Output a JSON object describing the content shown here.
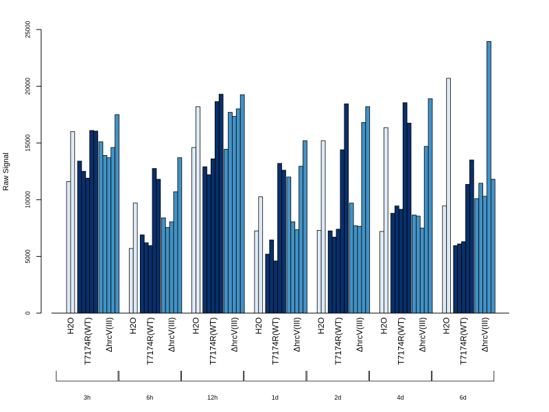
{
  "chart_data": {
    "type": "bar",
    "ylabel": "Raw Signal",
    "ylim": [
      0,
      25000
    ],
    "yticks": [
      0,
      5000,
      10000,
      15000,
      20000,
      25000
    ],
    "grid": false,
    "legend": "none",
    "conditions": [
      "H2O",
      "T7174R(WT)",
      "ΔhrcV(III)"
    ],
    "condition_colors": [
      "#deebf7",
      "#08306b",
      "#4292c6"
    ],
    "groups": [
      {
        "label": "3h",
        "bars": [
          {
            "condition": "H2O",
            "values": [
              11600,
              16000
            ]
          },
          {
            "condition": "T7174R(WT)",
            "values": [
              13400,
              12500,
              11900,
              16100,
              16050
            ]
          },
          {
            "condition": "ΔhrcV(III)",
            "values": [
              15100,
              13900,
              13700,
              14600,
              17500
            ]
          }
        ]
      },
      {
        "label": "6h",
        "bars": [
          {
            "condition": "H2O",
            "values": [
              5700,
              9700
            ]
          },
          {
            "condition": "T7174R(WT)",
            "values": [
              6900,
              6200,
              5950,
              12750,
              11800
            ]
          },
          {
            "condition": "ΔhrcV(III)",
            "values": [
              8400,
              7550,
              8050,
              10700,
              13700
            ]
          }
        ]
      },
      {
        "label": "12h",
        "bars": [
          {
            "condition": "H2O",
            "values": [
              14600,
              18200
            ]
          },
          {
            "condition": "T7174R(WT)",
            "values": [
              12900,
              12200,
              13600,
              18650,
              19300
            ]
          },
          {
            "condition": "ΔhrcV(III)",
            "values": [
              14450,
              17700,
              17350,
              18000,
              19250
            ]
          }
        ]
      },
      {
        "label": "1d",
        "bars": [
          {
            "condition": "H2O",
            "values": [
              7250,
              10250
            ]
          },
          {
            "condition": "T7174R(WT)",
            "values": [
              5200,
              6450,
              4600,
              13200,
              12600
            ]
          },
          {
            "condition": "ΔhrcV(III)",
            "values": [
              12000,
              8050,
              7350,
              12950,
              15200
            ]
          }
        ]
      },
      {
        "label": "2d",
        "bars": [
          {
            "condition": "H2O",
            "values": [
              7300,
              15200
            ]
          },
          {
            "condition": "T7174R(WT)",
            "values": [
              7250,
              6700,
              7400,
              14400,
              18450
            ]
          },
          {
            "condition": "ΔhrcV(III)",
            "values": [
              9700,
              7700,
              7650,
              16800,
              18200
            ]
          }
        ]
      },
      {
        "label": "4d",
        "bars": [
          {
            "condition": "H2O",
            "values": [
              7200,
              16350
            ]
          },
          {
            "condition": "T7174R(WT)",
            "values": [
              8800,
              9450,
              9150,
              18550,
              16750
            ]
          },
          {
            "condition": "ΔhrcV(III)",
            "values": [
              8650,
              8550,
              7500,
              14700,
              18900
            ]
          }
        ]
      },
      {
        "label": "6d",
        "bars": [
          {
            "condition": "H2O",
            "values": [
              9450,
              20700
            ]
          },
          {
            "condition": "T7174R(WT)",
            "values": [
              5950,
              6100,
              6300,
              11350,
              13500
            ]
          },
          {
            "condition": "ΔhrcV(III)",
            "values": [
              10100,
              11450,
              10300,
              23950,
              11800
            ]
          }
        ]
      }
    ]
  }
}
